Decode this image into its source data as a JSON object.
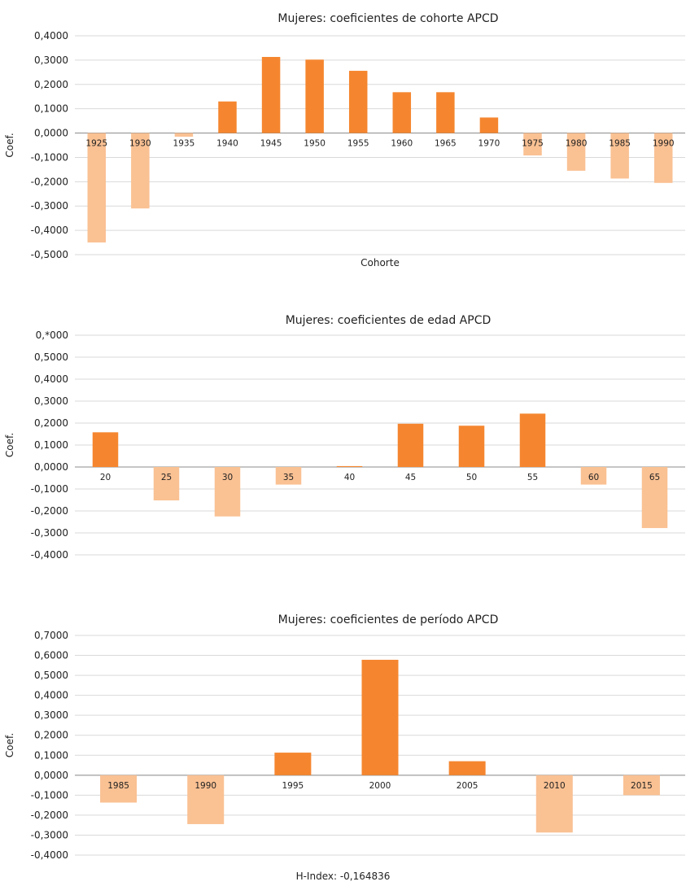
{
  "footer": "H-Index: -0,164836",
  "colors": {
    "positive": "#f5862f",
    "negative": "#fac193",
    "grid": "#d9d9d9",
    "axis": "#8c8c8c",
    "text": "#222222"
  },
  "chart_data": [
    {
      "type": "bar",
      "title": "Mujeres: coeficientes de cohorte APCD",
      "xlabel": "Cohorte",
      "ylabel": "Coef.",
      "ylim": [
        -0.5,
        0.4
      ],
      "yticks": [
        "0,4000",
        "0,3000",
        "0,2000",
        "0,1000",
        "0,0000",
        "-0,1000",
        "-0,2000",
        "-0,3000",
        "-0,4000",
        "-0,5000"
      ],
      "categories": [
        "1925",
        "1930",
        "1935",
        "1940",
        "1945",
        "1950",
        "1955",
        "1960",
        "1965",
        "1970",
        "1975",
        "1980",
        "1985",
        "1990"
      ],
      "values": [
        -0.45,
        -0.31,
        -0.015,
        0.13,
        0.313,
        0.302,
        0.256,
        0.168,
        0.168,
        0.064,
        -0.092,
        -0.155,
        -0.187,
        -0.205
      ],
      "grid": true
    },
    {
      "type": "bar",
      "title": "Mujeres: coeficientes de edad APCD",
      "xlabel": "",
      "ylabel": "Coef.",
      "ylim": [
        -0.4,
        0.6
      ],
      "yticks": [
        "0,*000",
        "0,5000",
        "0,4000",
        "0,3000",
        "0,2000",
        "0,1000",
        "0,0000",
        "-0,1000",
        "-0,2000",
        "-0,3000",
        "-0,4000"
      ],
      "categories": [
        "20",
        "25",
        "30",
        "35",
        "40",
        "45",
        "50",
        "55",
        "60",
        "65"
      ],
      "values": [
        0.158,
        -0.152,
        -0.225,
        -0.08,
        0.004,
        0.197,
        0.188,
        0.243,
        -0.08,
        -0.278
      ],
      "grid": true
    },
    {
      "type": "bar",
      "title": "Mujeres: coeficientes de período APCD",
      "xlabel": "",
      "ylabel": "Coef.",
      "ylim": [
        -0.4,
        0.7
      ],
      "yticks": [
        "0,7000",
        "0,6000",
        "0,5000",
        "0,4000",
        "0,3000",
        "0,2000",
        "0,1000",
        "0,0000",
        "-0,1000",
        "-0,2000",
        "-0,3000",
        "-0,4000"
      ],
      "categories": [
        "1985",
        "1990",
        "1995",
        "2000",
        "2005",
        "2010",
        "2015"
      ],
      "values": [
        -0.137,
        -0.245,
        0.113,
        0.578,
        0.07,
        -0.287,
        -0.1
      ],
      "grid": true
    }
  ]
}
